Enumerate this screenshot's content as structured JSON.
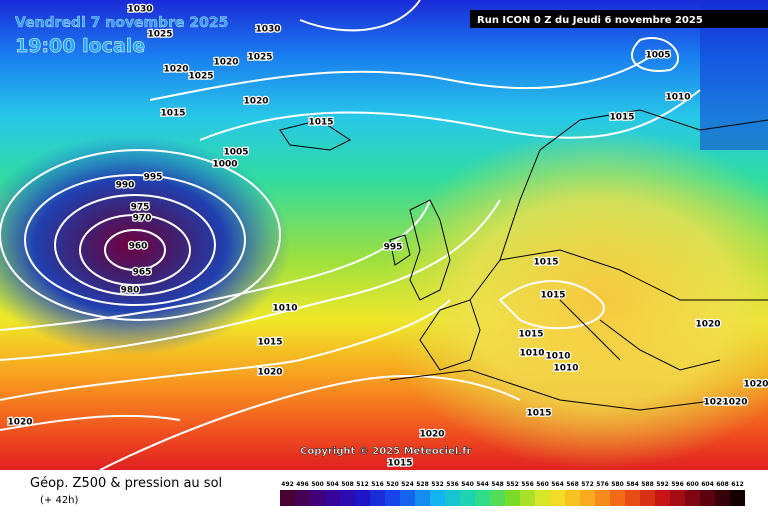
{
  "header": {
    "date": "Vendredi 7 novembre 2025",
    "time": "19:00 locale",
    "run": "Run ICON 0 Z du Jeudi 6 novembre 2025",
    "copyright": "Copyright © 2025 Meteociel.fr"
  },
  "footer": {
    "title": "Géop. Z500 & pression au sol",
    "lead": "(+ 42h)"
  },
  "colorbar": {
    "values": [
      492,
      496,
      500,
      504,
      508,
      512,
      516,
      520,
      524,
      528,
      532,
      536,
      540,
      544,
      548,
      552,
      556,
      560,
      564,
      568,
      572,
      576,
      580,
      584,
      588,
      592,
      596,
      600,
      604,
      608,
      612
    ]
  },
  "isobar_labels": [
    "1030",
    "1030",
    "1025",
    "1020",
    "1025",
    "1020",
    "1025",
    "1020",
    "1015",
    "1015",
    "1005",
    "1000",
    "995",
    "990",
    "975",
    "970",
    "960",
    "965",
    "980",
    "995",
    "1010",
    "1015",
    "1020",
    "1020",
    "1005",
    "1010",
    "1015",
    "1015",
    "1015",
    "1010",
    "1010",
    "1010",
    "1015",
    "1020",
    "1015",
    "1020",
    "1015",
    "1020",
    "1020",
    "1020"
  ]
}
